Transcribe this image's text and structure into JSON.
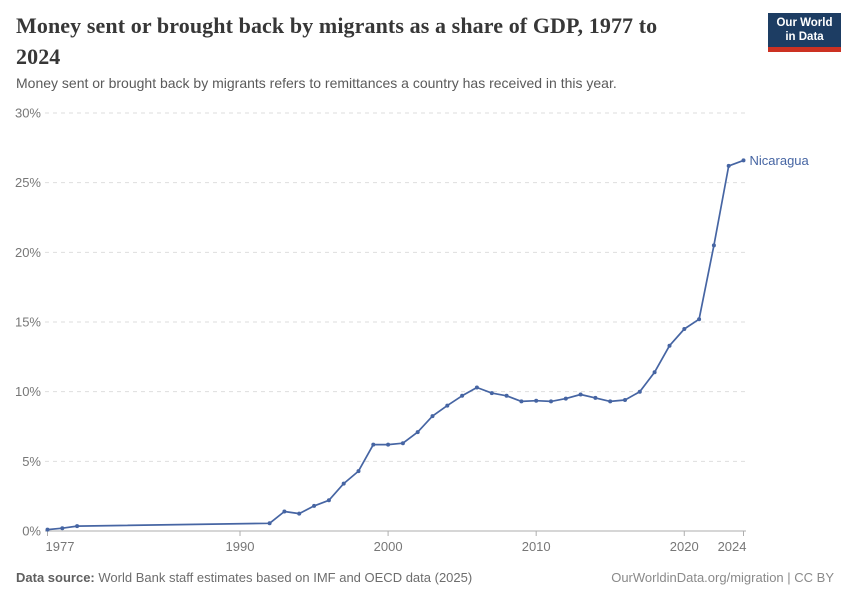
{
  "header": {
    "title": "Money sent or brought back by migrants as a share of GDP, 1977 to 2024",
    "subtitle": "Money sent or brought back by migrants refers to remittances a country has received in this year.",
    "logo": {
      "line1": "Our World",
      "line2": "in Data"
    }
  },
  "chart_data": {
    "type": "line",
    "title": "Money sent or brought back by migrants as a share of GDP, 1977 to 2024",
    "unit": "%",
    "xlim": [
      1977,
      2024
    ],
    "ylim": [
      0,
      30
    ],
    "grid": "horizontal-dashed",
    "legend": "end-of-line-label",
    "yticks": [
      {
        "value": 0,
        "label": "0%"
      },
      {
        "value": 5,
        "label": "5%"
      },
      {
        "value": 10,
        "label": "10%"
      },
      {
        "value": 15,
        "label": "15%"
      },
      {
        "value": 20,
        "label": "20%"
      },
      {
        "value": 25,
        "label": "25%"
      },
      {
        "value": 30,
        "label": "30%"
      }
    ],
    "xticks": [
      {
        "value": 1977,
        "label": "1977"
      },
      {
        "value": 1990,
        "label": "1990"
      },
      {
        "value": 2000,
        "label": "2000"
      },
      {
        "value": 2010,
        "label": "2010"
      },
      {
        "value": 2020,
        "label": "2020"
      },
      {
        "value": 2024,
        "label": "2024"
      }
    ],
    "series": [
      {
        "name": "Nicaragua",
        "color": "#4665A3",
        "points": [
          [
            1977,
            0.1
          ],
          [
            1978,
            0.2
          ],
          [
            1979,
            0.35
          ],
          [
            1992,
            0.55
          ],
          [
            1993,
            1.4
          ],
          [
            1994,
            1.25
          ],
          [
            1995,
            1.8
          ],
          [
            1996,
            2.2
          ],
          [
            1997,
            3.4
          ],
          [
            1998,
            4.3
          ],
          [
            1999,
            6.2
          ],
          [
            2000,
            6.2
          ],
          [
            2001,
            6.3
          ],
          [
            2002,
            7.1
          ],
          [
            2003,
            8.25
          ],
          [
            2004,
            9.0
          ],
          [
            2005,
            9.7
          ],
          [
            2006,
            10.3
          ],
          [
            2007,
            9.9
          ],
          [
            2008,
            9.7
          ],
          [
            2009,
            9.3
          ],
          [
            2010,
            9.35
          ],
          [
            2011,
            9.3
          ],
          [
            2012,
            9.5
          ],
          [
            2013,
            9.8
          ],
          [
            2014,
            9.55
          ],
          [
            2015,
            9.3
          ],
          [
            2016,
            9.4
          ],
          [
            2017,
            10.0
          ],
          [
            2018,
            11.4
          ],
          [
            2019,
            13.3
          ],
          [
            2020,
            14.5
          ],
          [
            2021,
            15.2
          ],
          [
            2022,
            20.5
          ],
          [
            2023,
            26.2
          ],
          [
            2024,
            26.6
          ]
        ]
      }
    ]
  },
  "footer": {
    "source_label": "Data source:",
    "source_text": "World Bank staff estimates based on IMF and OECD data (2025)",
    "citation": "OurWorldinData.org/migration | CC BY"
  },
  "colors": {
    "line": "#4665A3",
    "grid": "#dedede",
    "axis": "#aeaeae",
    "tick_text": "#777777",
    "title": "#373737",
    "subtitle": "#5a5a5a",
    "logo_bg": "#1d3d63",
    "logo_accent": "#cc3122"
  }
}
